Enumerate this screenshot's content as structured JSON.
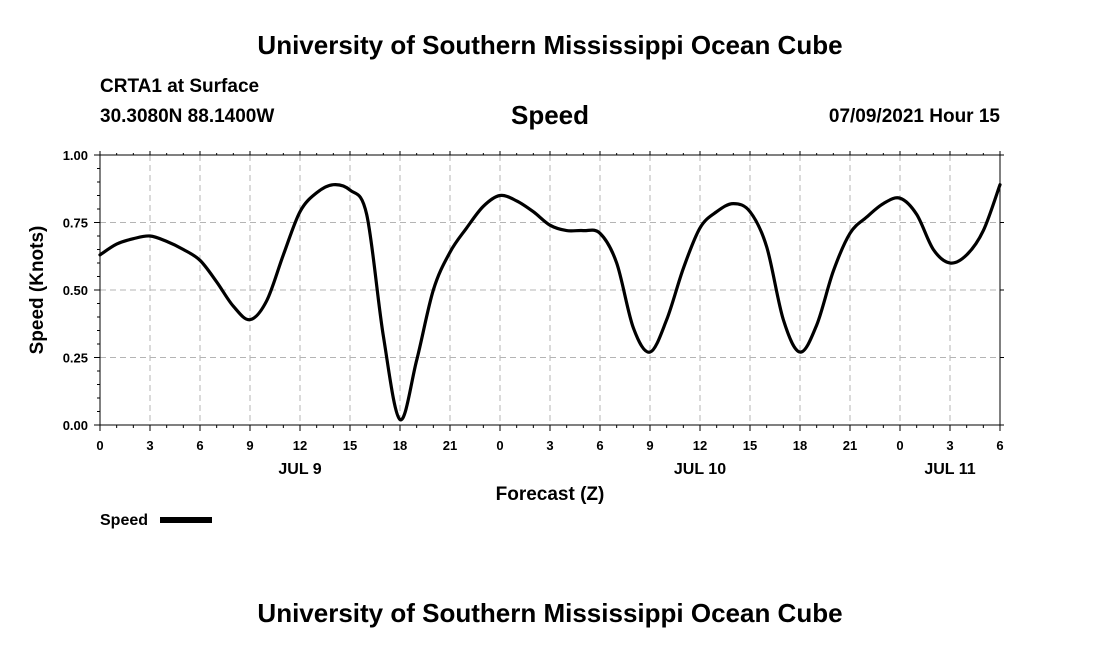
{
  "header": {
    "title": "University of Southern Mississippi Ocean Cube",
    "station": "CRTA1 at Surface",
    "coords": "30.3080N  88.1400W",
    "date": "07/09/2021 Hour 15"
  },
  "footer": {
    "title": "University of Southern Mississippi Ocean Cube"
  },
  "legend": {
    "label": "Speed"
  },
  "chart_data": {
    "type": "line",
    "title": "Speed",
    "xlabel": "Forecast (Z)",
    "ylabel": "Speed (Knots)",
    "xlim": [
      0,
      54
    ],
    "ylim": [
      0,
      1
    ],
    "grid": true,
    "line_color": "#000000",
    "x_ticks": [
      {
        "x": 0,
        "label": "0"
      },
      {
        "x": 3,
        "label": "3"
      },
      {
        "x": 6,
        "label": "6"
      },
      {
        "x": 9,
        "label": "9"
      },
      {
        "x": 12,
        "label": "12"
      },
      {
        "x": 15,
        "label": "15"
      },
      {
        "x": 18,
        "label": "18"
      },
      {
        "x": 21,
        "label": "21"
      },
      {
        "x": 24,
        "label": "0"
      },
      {
        "x": 27,
        "label": "3"
      },
      {
        "x": 30,
        "label": "6"
      },
      {
        "x": 33,
        "label": "9"
      },
      {
        "x": 36,
        "label": "12"
      },
      {
        "x": 39,
        "label": "15"
      },
      {
        "x": 42,
        "label": "18"
      },
      {
        "x": 45,
        "label": "21"
      },
      {
        "x": 48,
        "label": "0"
      },
      {
        "x": 51,
        "label": "3"
      },
      {
        "x": 54,
        "label": "6"
      }
    ],
    "date_labels": [
      {
        "x": 12,
        "label": "JUL 9"
      },
      {
        "x": 36,
        "label": "JUL 10"
      },
      {
        "x": 51,
        "label": "JUL 11"
      }
    ],
    "y_ticks": [
      {
        "y": 0,
        "label": "0.00"
      },
      {
        "y": 0.25,
        "label": "0.25"
      },
      {
        "y": 0.5,
        "label": "0.50"
      },
      {
        "y": 0.75,
        "label": "0.75"
      },
      {
        "y": 1,
        "label": "1.00"
      }
    ],
    "series": [
      {
        "name": "Speed",
        "x": [
          0,
          1,
          2,
          3,
          4,
          5,
          6,
          7,
          8,
          9,
          10,
          11,
          12,
          13,
          14,
          15,
          16,
          17,
          18,
          19,
          20,
          21,
          22,
          23,
          24,
          25,
          26,
          27,
          28,
          29,
          30,
          31,
          32,
          33,
          34,
          35,
          36,
          37,
          38,
          39,
          40,
          41,
          42,
          43,
          44,
          45,
          46,
          47,
          48,
          49,
          50,
          51,
          52,
          53,
          54
        ],
        "values": [
          0.63,
          0.67,
          0.69,
          0.7,
          0.68,
          0.65,
          0.61,
          0.53,
          0.44,
          0.39,
          0.46,
          0.63,
          0.79,
          0.86,
          0.89,
          0.87,
          0.78,
          0.33,
          0.02,
          0.24,
          0.5,
          0.64,
          0.73,
          0.81,
          0.85,
          0.83,
          0.79,
          0.74,
          0.72,
          0.72,
          0.71,
          0.6,
          0.36,
          0.27,
          0.39,
          0.58,
          0.73,
          0.79,
          0.82,
          0.79,
          0.66,
          0.39,
          0.27,
          0.37,
          0.57,
          0.71,
          0.77,
          0.82,
          0.84,
          0.78,
          0.65,
          0.6,
          0.63,
          0.72,
          0.89
        ]
      }
    ]
  }
}
